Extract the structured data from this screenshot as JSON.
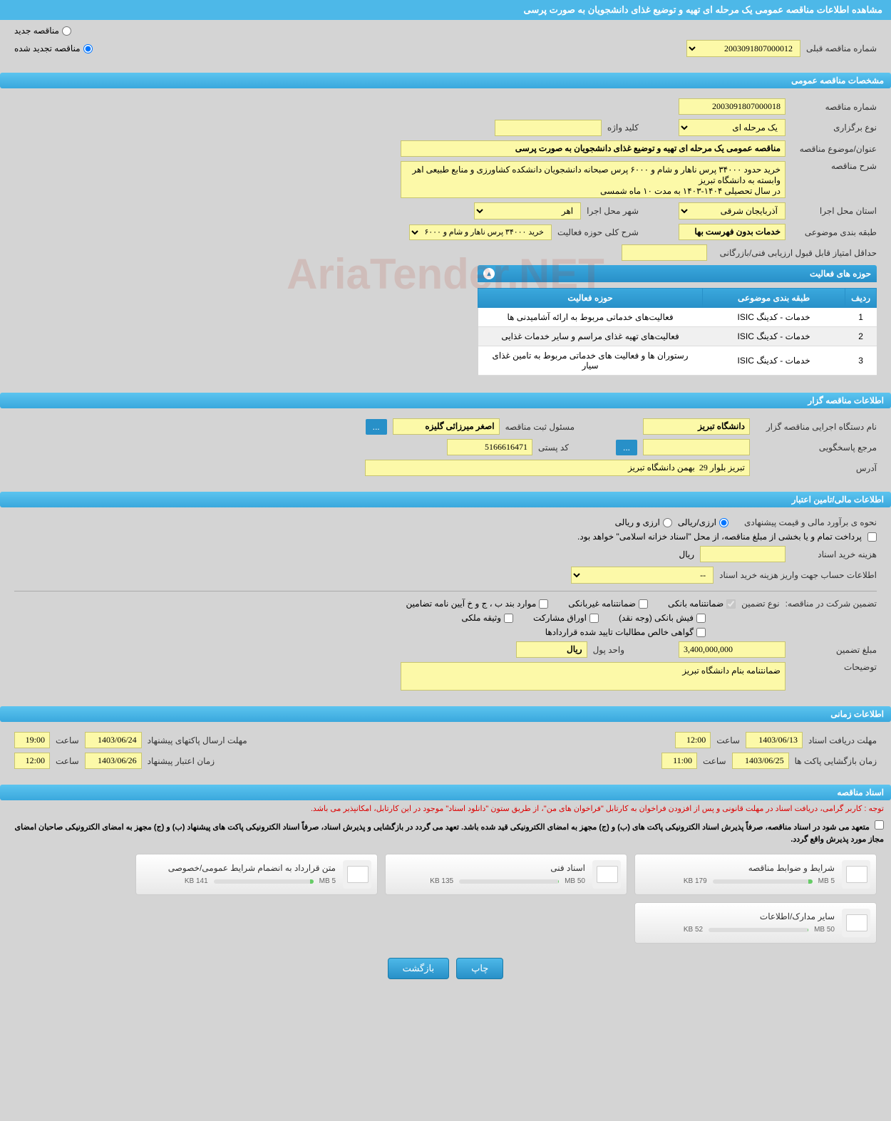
{
  "page": {
    "title": "مشاهده اطلاعات مناقصه عمومی یک مرحله ای تهیه و توضیع غذای دانشجویان به صورت پرسی"
  },
  "tender_type": {
    "new_label": "مناقصه جدید",
    "renewed_label": "مناقصه تجدید شده",
    "selected": "renewed",
    "prev_number_label": "شماره مناقصه قبلی",
    "prev_number": "2003091807000012"
  },
  "sections": {
    "general": "مشخصات مناقصه عمومی",
    "organizer": "اطلاعات مناقصه گزار",
    "financial": "اطلاعات مالی/تامین اعتبار",
    "timing": "اطلاعات زمانی",
    "documents": "اسناد مناقصه"
  },
  "general": {
    "number_label": "شماره مناقصه",
    "number": "2003091807000018",
    "type_label": "نوع برگزاری",
    "type": "یک مرحله ای",
    "keyword_label": "کلید واژه",
    "keyword": "",
    "subject_label": "عنوان/موضوع مناقصه",
    "subject": "مناقصه عمومی یک مرحله ای تهیه و توضیع غذای دانشجویان به صورت پرسی",
    "desc_label": "شرح مناقصه",
    "desc": "خرید حدود ۳۴۰۰۰ پرس ناهار و شام و ۶۰۰۰ پرس صبحانه دانشجویان دانشکده کشاورزی و منابع طبیعی اهر وابسته به دانشگاه تبریز\nدر سال تحصیلی ۱۴۰۴-۱۴۰۳ به مدت ۱۰ ماه شمسی",
    "province_label": "استان محل اجرا",
    "province": "آذربایجان شرقی",
    "city_label": "شهر محل اجرا",
    "city": "اهر",
    "category_label": "طبقه بندی موضوعی",
    "category": "خدمات بدون فهرست بها",
    "scope_label": "شرح کلی حوزه فعالیت",
    "scope": "خرید ۳۴۰۰۰ پرس ناهار و شام و ۶۰۰۰ پرس صبحانه",
    "min_score_label": "حداقل امتیاز قابل قبول ارزیابی فنی/بازرگانی",
    "min_score": ""
  },
  "activities": {
    "title": "حوزه های فعالیت",
    "col_row": "ردیف",
    "col_category": "طبقه بندی موضوعی",
    "col_field": "حوزه فعالیت",
    "rows": [
      {
        "n": "1",
        "cat": "خدمات - کدینگ ISIC",
        "field": "فعالیت‌های خدماتی مربوط به ارائه آشامیدنی ها"
      },
      {
        "n": "2",
        "cat": "خدمات - کدینگ ISIC",
        "field": "فعالیت‌های تهیه غذای مراسم و سایر خدمات غذایی"
      },
      {
        "n": "3",
        "cat": "خدمات - کدینگ ISIC",
        "field": "رستوران ها و فعالیت های خدماتی مربوط به تامین غذای سیار"
      }
    ]
  },
  "organizer": {
    "org_label": "نام دستگاه اجرایی مناقصه گزار",
    "org": "دانشگاه تبریز",
    "person_label": "مسئول ثبت مناقصه",
    "person": "اصغر میرزائی گلیزه",
    "more": "...",
    "contact_label": "مرجع پاسخگویی",
    "contact": "",
    "contact_more": "...",
    "postal_label": "کد پستی",
    "postal": "5166616471",
    "address_label": "آدرس",
    "address": "تبریز بلوار 29  بهمن دانشگاه تبریز"
  },
  "financial": {
    "estimate_label": "نحوه ی برآورد مالی و قیمت پیشنهادی",
    "rial_label": "ارزی/ریالی",
    "fx_label": "ارزی و ریالی",
    "payment_note": "پرداخت تمام و یا بخشی از مبلغ مناقصه، از محل \"اسناد خزانه اسلامی\" خواهد بود.",
    "doc_cost_label": "هزینه خرید اسناد",
    "doc_cost_unit": "ریال",
    "doc_cost": "",
    "account_label": "اطلاعات حساب جهت واریز هزینه خرید اسناد",
    "account": "--",
    "guarantee_label": "تضمین شرکت در مناقصه:",
    "guarantee_type_label": "نوع تضمین",
    "g_bank": "ضمانتنامه بانکی",
    "g_nonbank": "ضمانتنامه غیربانکی",
    "g_bylaw": "موارد بند ب ، ج و خ آیین نامه تضامین",
    "g_cash": "فیش بانکی (وجه نقد)",
    "g_securities": "اوراق مشارکت",
    "g_property": "وثیقه ملکی",
    "g_receivables": "گواهی خالص مطالبات تایید شده قراردادها",
    "amount_label": "مبلغ تضمین",
    "amount": "3,400,000,000",
    "unit_label": "واحد پول",
    "unit": "ریال",
    "note_label": "توضیحات",
    "note": "ضمانتنامه بنام دانشگاه تبریز"
  },
  "timing": {
    "doc_deadline_label": "مهلت دریافت اسناد",
    "doc_deadline_date": "1403/06/13",
    "doc_deadline_time_label": "ساعت",
    "doc_deadline_time": "12:00",
    "submit_deadline_label": "مهلت ارسال پاکتهای پیشنهاد",
    "submit_deadline_date": "1403/06/24",
    "submit_deadline_time": "19:00",
    "open_label": "زمان بازگشایی پاکت ها",
    "open_date": "1403/06/25",
    "open_time": "11:00",
    "validity_label": "زمان اعتبار پیشنهاد",
    "validity_date": "1403/06/26",
    "validity_time": "12:00"
  },
  "documents": {
    "notice1": "توجه : کاربر گرامی، دریافت اسناد در مهلت قانونی و پس از افزودن فراخوان به کارتابل \"فراخوان های من\"، از طریق ستون \"دانلود اسناد\" موجود در این کارتابل، امکانپذیر می باشد.",
    "notice2": "متعهد می شود در اسناد مناقصه، صرفاً پذیرش اسناد الکترونیکی پاکت های (ب) و (ج) مجهز به امضای الکترونیکی قید شده باشد. تعهد می گردد در بازگشایی و پذیرش اسناد، صرفاً اسناد الکترونیکی پاکت های پیشنهاد (ب) و (ج) مجهز به امضای الکترونیکی صاحبان امضای مجاز مورد پذیرش واقع گردد.",
    "files": [
      {
        "title": "شرایط و ضوابط مناقصه",
        "size": "179 KB",
        "max": "5 MB",
        "pct": 4
      },
      {
        "title": "اسناد فنی",
        "size": "135 KB",
        "max": "50 MB",
        "pct": 1
      },
      {
        "title": "متن قرارداد به انضمام شرایط عمومی/خصوصی",
        "size": "141 KB",
        "max": "5 MB",
        "pct": 3
      },
      {
        "title": "سایر مدارک/اطلاعات",
        "size": "52 KB",
        "max": "50 MB",
        "pct": 1
      }
    ]
  },
  "buttons": {
    "print": "چاپ",
    "back": "بازگشت"
  },
  "watermark": "AriaTender.NET"
}
